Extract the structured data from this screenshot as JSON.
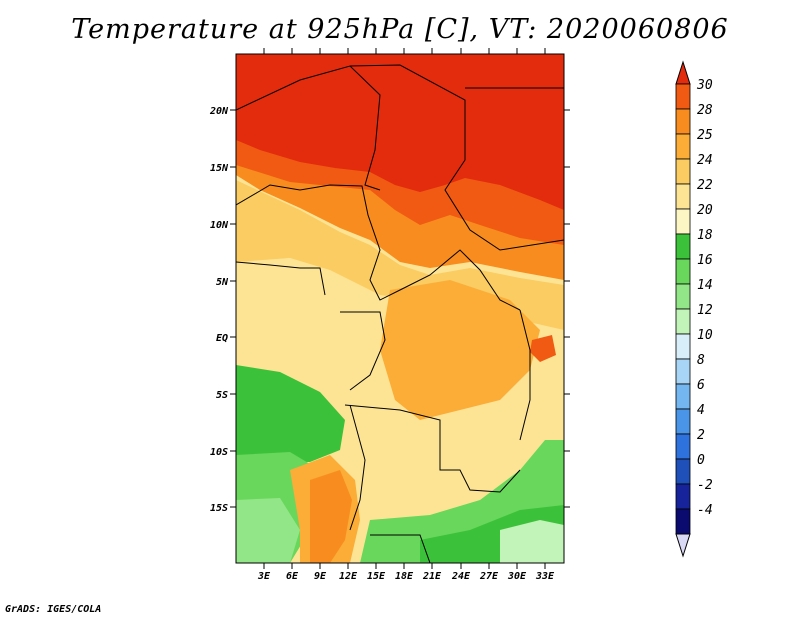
{
  "title": "Temperature at 925hPa [C], VT: 2020060806",
  "credit": "GrADS: IGES/COLA",
  "map": {
    "lat_labels": [
      "20N",
      "15N",
      "10N",
      "5N",
      "EQ",
      "5S",
      "10S",
      "15S"
    ],
    "lon_labels": [
      "3E",
      "6E",
      "9E",
      "12E",
      "15E",
      "18E",
      "21E",
      "24E",
      "27E",
      "30E",
      "33E"
    ]
  },
  "colorbar": {
    "labels": [
      "30",
      "28",
      "25",
      "24",
      "22",
      "20",
      "18",
      "16",
      "14",
      "12",
      "10",
      "8",
      "6",
      "4",
      "2",
      "0",
      "-2",
      "-4"
    ],
    "colors": [
      "#e32b0d",
      "#f05a12",
      "#f88c1f",
      "#fbad37",
      "#fbcc61",
      "#fde495",
      "#fcf6c4",
      "#3cc23a",
      "#68d75b",
      "#93e688",
      "#c2f3b8",
      "#d8effa",
      "#a8d5f5",
      "#74b6ef",
      "#4a95e7",
      "#2e72de",
      "#1f4fb9",
      "#16239a",
      "#0b0a6e",
      "#d9d9f5"
    ]
  }
}
